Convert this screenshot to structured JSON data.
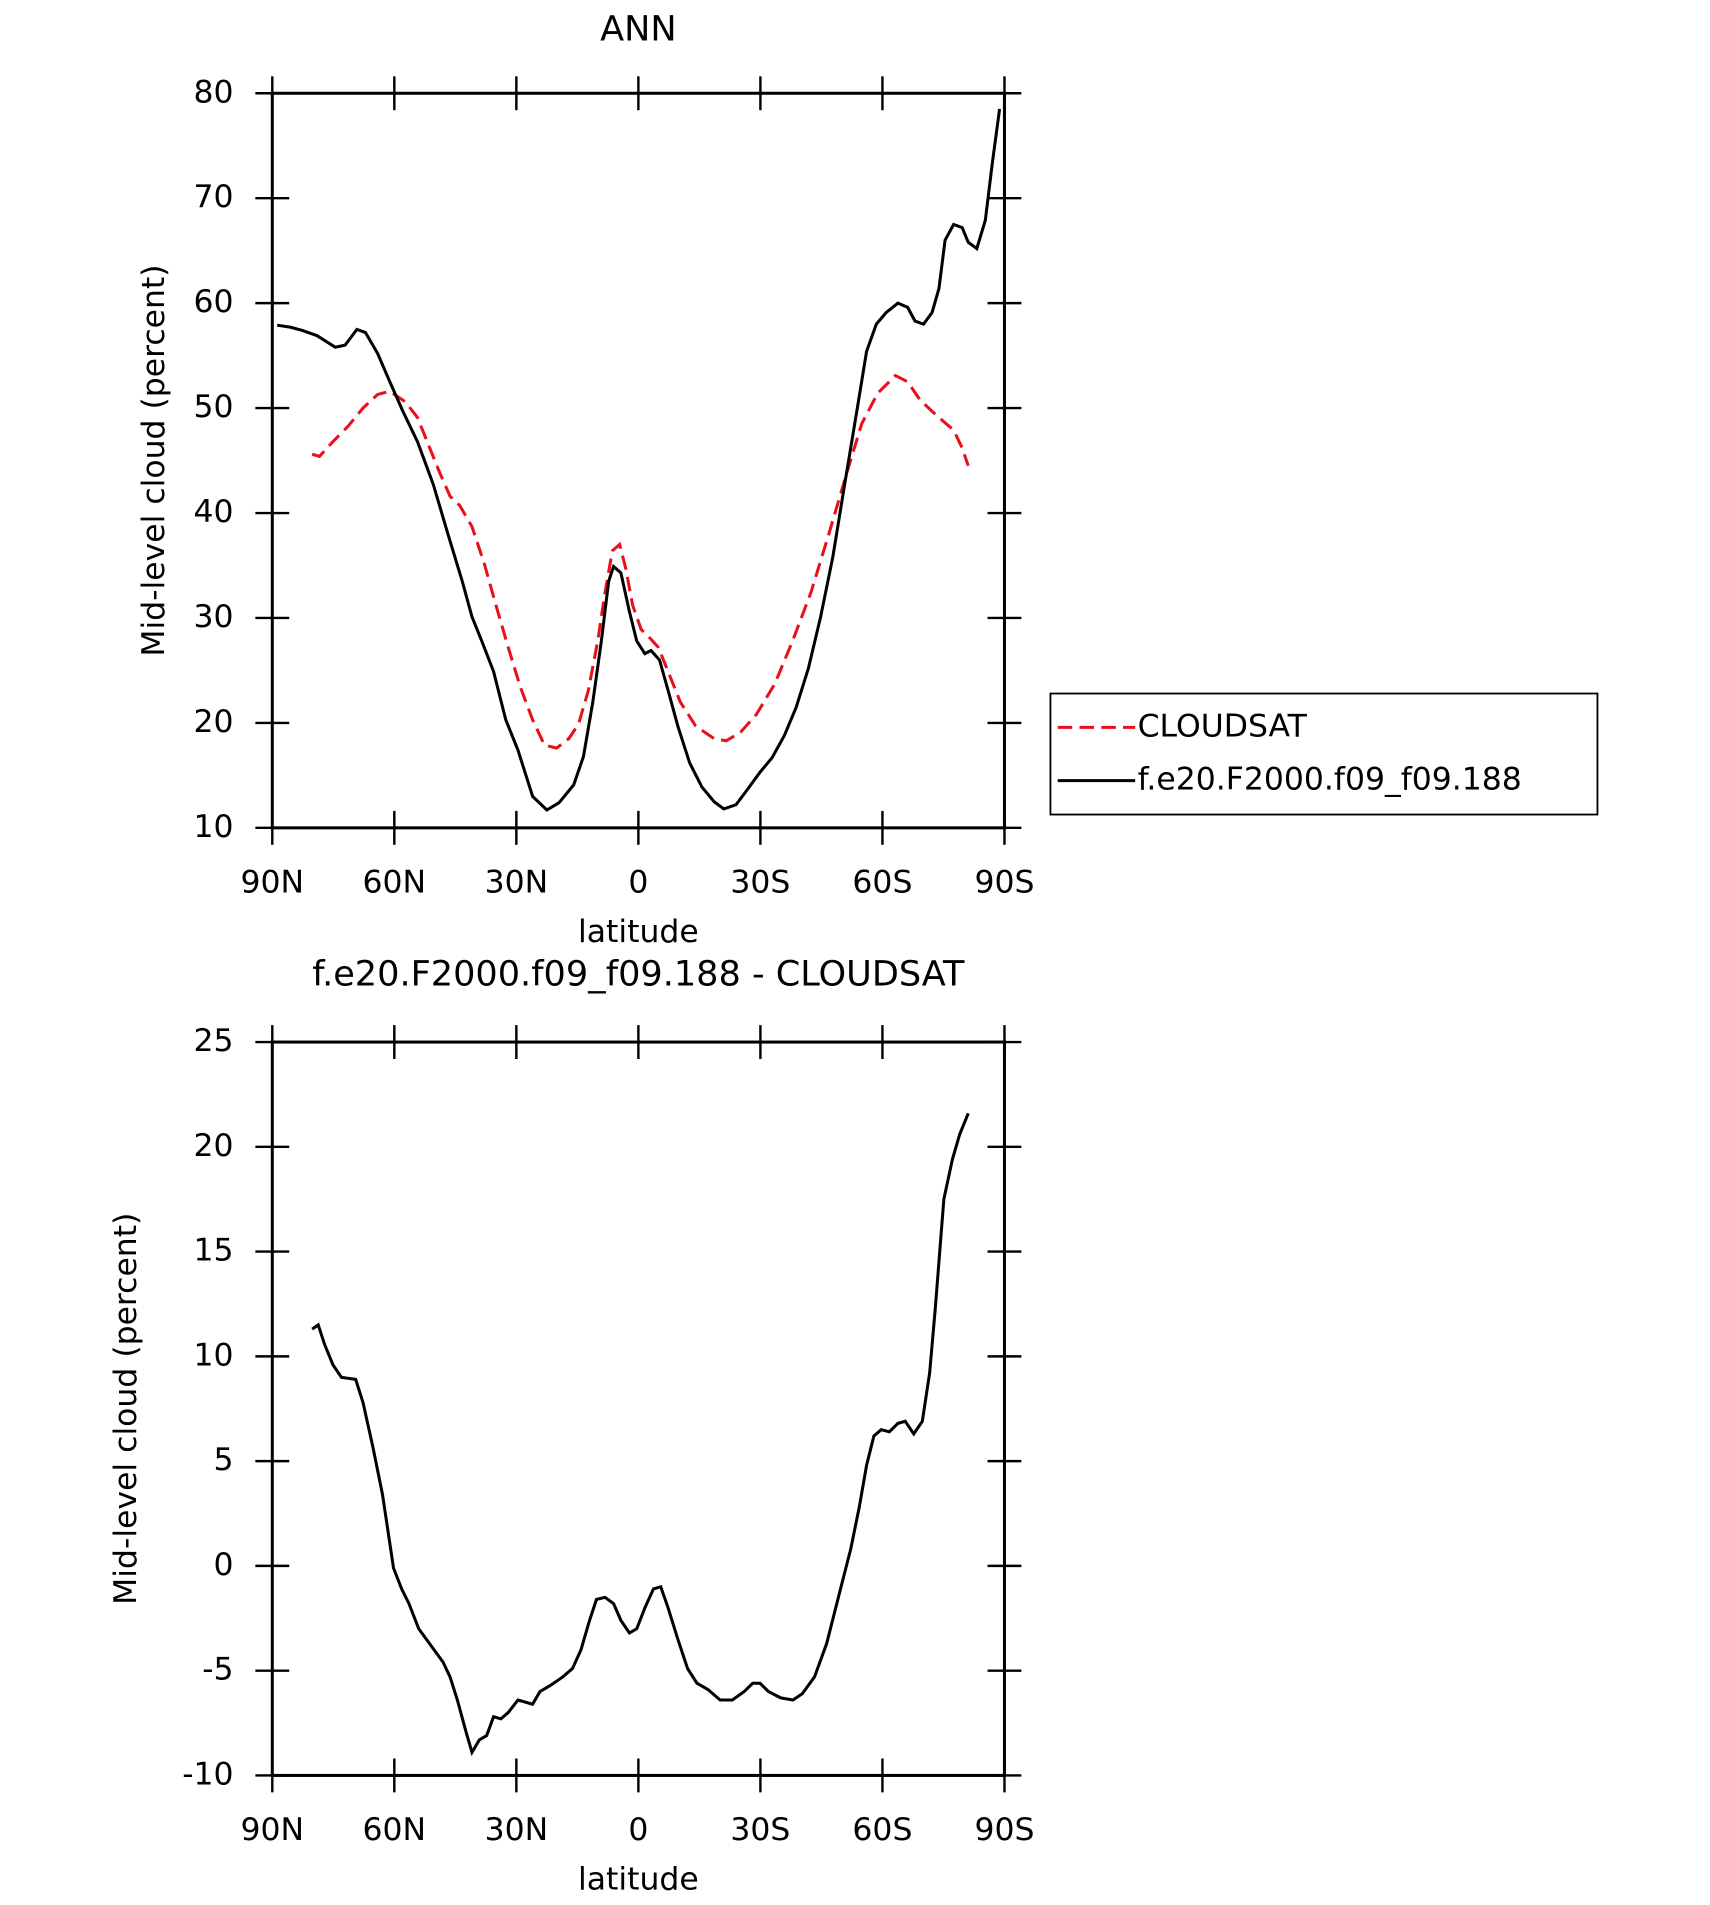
{
  "chart_data": [
    {
      "type": "line",
      "title": "ANN",
      "xlabel": "latitude",
      "ylabel": "Mid-level cloud (percent)",
      "xlim": [
        90,
        -90
      ],
      "ylim": [
        10,
        80
      ],
      "xticks": [
        {
          "value": 90,
          "label": "90N"
        },
        {
          "value": 60,
          "label": "60N"
        },
        {
          "value": 30,
          "label": "30N"
        },
        0,
        {
          "value": -30,
          "label": "30S"
        },
        {
          "value": -60,
          "label": "60S"
        },
        {
          "value": -90,
          "label": "90S"
        }
      ],
      "yticks": [
        10,
        20,
        30,
        40,
        50,
        60,
        70,
        80
      ],
      "legend": "right",
      "series": [
        {
          "name": "CLOUDSAT",
          "color": "#e8101a",
          "line_style": "dashed",
          "x": [
            80.2,
            78.4,
            75.1,
            71.3,
            67.7,
            64.1,
            61.1,
            57.3,
            54.3,
            51.3,
            48.9,
            46.3,
            43.9,
            40.9,
            37.9,
            35.0,
            32.0,
            29.0,
            26.0,
            23.1,
            20.1,
            17.1,
            14.7,
            12.3,
            10.0,
            8.2,
            6.4,
            4.6,
            3.1,
            1.4,
            -0.7,
            -2.8,
            -4.9,
            -7.3,
            -10.3,
            -14.1,
            -18.6,
            -21.6,
            -25.1,
            -29.0,
            -33.5,
            -37.9,
            -42.4,
            -46.9,
            -51.3,
            -54.9,
            -58.8,
            -63.2,
            -66.2,
            -69.2,
            -72.2,
            -75.1,
            -77.5,
            -79.6,
            -81.1
          ],
          "values": [
            45.6,
            45.4,
            46.8,
            48.3,
            50.0,
            51.3,
            51.6,
            50.6,
            49.1,
            46.2,
            43.9,
            41.6,
            40.7,
            38.7,
            35.2,
            31.2,
            27.2,
            23.4,
            20.3,
            17.9,
            17.6,
            18.5,
            19.9,
            23.1,
            27.8,
            32.4,
            36.4,
            37.0,
            34.7,
            31.2,
            28.9,
            28.1,
            27.2,
            24.9,
            22.0,
            19.7,
            18.5,
            18.3,
            19.1,
            20.8,
            23.7,
            27.8,
            32.4,
            38.1,
            43.9,
            48.5,
            51.4,
            53.1,
            52.5,
            50.8,
            49.7,
            48.7,
            47.9,
            46.2,
            44.5
          ]
        },
        {
          "name": "f.e20.F2000.f09_f09.188",
          "color": "#000000",
          "line_style": "solid",
          "x": [
            88.8,
            85.5,
            82.6,
            79.0,
            74.5,
            72.1,
            69.2,
            67.1,
            64.1,
            61.1,
            57.9,
            54.3,
            50.4,
            46.9,
            43.3,
            40.9,
            38.5,
            35.6,
            32.6,
            29.6,
            26.0,
            22.5,
            19.5,
            15.9,
            13.5,
            11.2,
            9.1,
            7.3,
            6.1,
            4.3,
            2.2,
            0.4,
            -1.6,
            -3.1,
            -5.2,
            -7.3,
            -9.7,
            -12.6,
            -15.6,
            -18.6,
            -21.0,
            -24.0,
            -26.9,
            -29.9,
            -32.9,
            -35.9,
            -38.8,
            -41.8,
            -44.8,
            -47.8,
            -50.7,
            -53.7,
            -56.1,
            -58.5,
            -60.9,
            -63.8,
            -66.2,
            -68.0,
            -70.1,
            -72.2,
            -73.9,
            -75.4,
            -77.5,
            -79.6,
            -81.1,
            -83.2,
            -85.3,
            -87.0,
            -88.8
          ],
          "values": [
            57.9,
            57.7,
            57.4,
            56.9,
            55.8,
            56.0,
            57.5,
            57.2,
            55.2,
            52.5,
            49.7,
            46.8,
            42.7,
            38.1,
            33.5,
            30.1,
            27.8,
            24.9,
            20.3,
            17.4,
            13.0,
            11.7,
            12.4,
            14.1,
            16.8,
            22.0,
            27.8,
            33.5,
            34.9,
            34.3,
            30.6,
            27.8,
            26.6,
            26.9,
            26.0,
            23.1,
            19.7,
            16.2,
            13.9,
            12.5,
            11.8,
            12.2,
            13.7,
            15.3,
            16.7,
            18.8,
            21.5,
            25.2,
            30.1,
            35.8,
            42.7,
            49.7,
            55.4,
            58.0,
            59.1,
            60.0,
            59.6,
            58.3,
            58.0,
            59.1,
            61.4,
            66.0,
            67.5,
            67.2,
            65.8,
            65.2,
            67.9,
            73.3,
            78.5
          ]
        }
      ]
    },
    {
      "type": "line",
      "title": "f.e20.F2000.f09_f09.188 - CLOUDSAT",
      "xlabel": "latitude",
      "ylabel": "Mid-level cloud (percent)",
      "xlim": [
        90,
        -90
      ],
      "ylim": [
        -10,
        25
      ],
      "xticks": [
        {
          "value": 90,
          "label": "90N"
        },
        {
          "value": 60,
          "label": "60N"
        },
        {
          "value": 30,
          "label": "30N"
        },
        0,
        {
          "value": -30,
          "label": "30S"
        },
        {
          "value": -60,
          "label": "60S"
        },
        {
          "value": -90,
          "label": "90S"
        }
      ],
      "yticks": [
        -10,
        -5,
        0,
        5,
        10,
        15,
        20,
        25
      ],
      "series": [
        {
          "color": "#000000",
          "line_style": "solid",
          "x": [
            80.2,
            78.7,
            77.2,
            75.1,
            73.0,
            69.5,
            67.7,
            65.3,
            62.9,
            60.2,
            58.2,
            56.4,
            54.0,
            51.0,
            48.0,
            46.3,
            44.5,
            42.4,
            40.9,
            39.1,
            37.3,
            35.6,
            33.8,
            32.0,
            29.6,
            26.0,
            24.2,
            21.6,
            18.6,
            16.2,
            14.1,
            12.0,
            10.3,
            8.2,
            6.1,
            4.3,
            2.2,
            0.4,
            -1.6,
            -3.7,
            -5.5,
            -7.3,
            -9.7,
            -12.1,
            -14.4,
            -17.1,
            -20.1,
            -23.1,
            -26.0,
            -28.1,
            -29.9,
            -32.0,
            -35.0,
            -38.0,
            -40.3,
            -43.3,
            -46.3,
            -49.3,
            -52.2,
            -54.3,
            -56.1,
            -57.9,
            -59.7,
            -61.7,
            -63.8,
            -65.6,
            -67.7,
            -69.8,
            -71.6,
            -73.0,
            -75.1,
            -77.2,
            -79.0,
            -81.1
          ],
          "values": [
            11.3,
            11.5,
            10.6,
            9.6,
            9.0,
            8.9,
            7.8,
            5.7,
            3.4,
            -0.1,
            -1.1,
            -1.8,
            -3.0,
            -3.8,
            -4.6,
            -5.3,
            -6.4,
            -7.9,
            -8.9,
            -8.3,
            -8.1,
            -7.2,
            -7.3,
            -7.0,
            -6.4,
            -6.6,
            -6.0,
            -5.7,
            -5.3,
            -4.9,
            -4.0,
            -2.6,
            -1.6,
            -1.5,
            -1.8,
            -2.6,
            -3.2,
            -3.0,
            -2.0,
            -1.1,
            -1.0,
            -2.0,
            -3.5,
            -4.9,
            -5.6,
            -5.9,
            -6.4,
            -6.4,
            -6.0,
            -5.6,
            -5.6,
            -6.0,
            -6.3,
            -6.4,
            -6.1,
            -5.3,
            -3.7,
            -1.4,
            0.8,
            2.8,
            4.8,
            6.2,
            6.5,
            6.4,
            6.8,
            6.9,
            6.3,
            6.9,
            9.2,
            12.3,
            17.5,
            19.4,
            20.6,
            21.6
          ]
        }
      ]
    }
  ]
}
